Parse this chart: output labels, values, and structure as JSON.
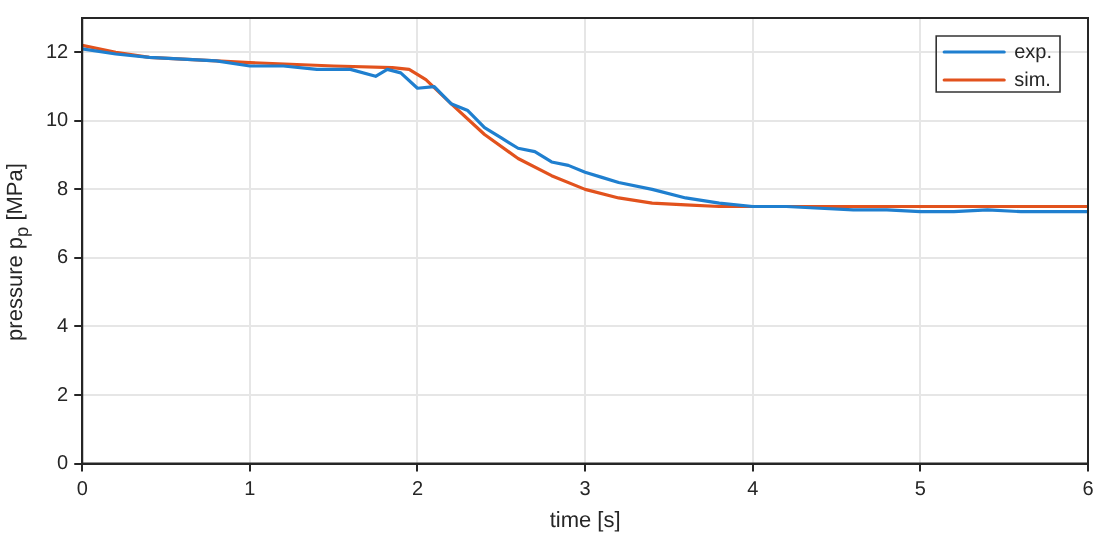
{
  "chart_data": {
    "type": "line",
    "xlabel": "time [s]",
    "ylabel": "pressure  p$_{p}$ [MPa]",
    "xlim": [
      0,
      6
    ],
    "ylim": [
      0,
      13
    ],
    "xticks": [
      0,
      1,
      2,
      3,
      4,
      5,
      6
    ],
    "yticks": [
      0,
      2,
      4,
      6,
      8,
      10,
      12
    ],
    "grid": true,
    "legend": "top right",
    "marker": "none",
    "line_style": "solid",
    "series": [
      {
        "name": "exp.",
        "color": "#1f7fcf",
        "x": [
          0,
          0.2,
          0.4,
          0.6,
          0.8,
          1.0,
          1.2,
          1.4,
          1.6,
          1.75,
          1.82,
          1.9,
          2.0,
          2.1,
          2.2,
          2.3,
          2.4,
          2.5,
          2.6,
          2.7,
          2.8,
          2.9,
          3.0,
          3.1,
          3.2,
          3.4,
          3.6,
          3.8,
          4.0,
          4.2,
          4.4,
          4.6,
          4.8,
          5.0,
          5.2,
          5.4,
          5.6,
          5.8,
          6.0
        ],
        "values": [
          12.1,
          11.95,
          11.85,
          11.8,
          11.75,
          11.6,
          11.6,
          11.5,
          11.5,
          11.3,
          11.5,
          11.4,
          10.95,
          11.0,
          10.5,
          10.3,
          9.8,
          9.5,
          9.2,
          9.1,
          8.8,
          8.7,
          8.5,
          8.35,
          8.2,
          8.0,
          7.75,
          7.6,
          7.5,
          7.5,
          7.45,
          7.4,
          7.4,
          7.35,
          7.35,
          7.4,
          7.35,
          7.35,
          7.35
        ]
      },
      {
        "name": "sim.",
        "color": "#e2521d",
        "x": [
          0,
          0.2,
          0.4,
          1.0,
          1.5,
          1.85,
          1.95,
          2.05,
          2.2,
          2.4,
          2.6,
          2.8,
          3.0,
          3.2,
          3.4,
          3.6,
          3.8,
          4.0,
          5.0,
          6.0
        ],
        "values": [
          12.2,
          12.0,
          11.85,
          11.7,
          11.6,
          11.55,
          11.5,
          11.2,
          10.5,
          9.6,
          8.9,
          8.4,
          8.0,
          7.75,
          7.6,
          7.55,
          7.5,
          7.5,
          7.5,
          7.5
        ]
      }
    ]
  }
}
